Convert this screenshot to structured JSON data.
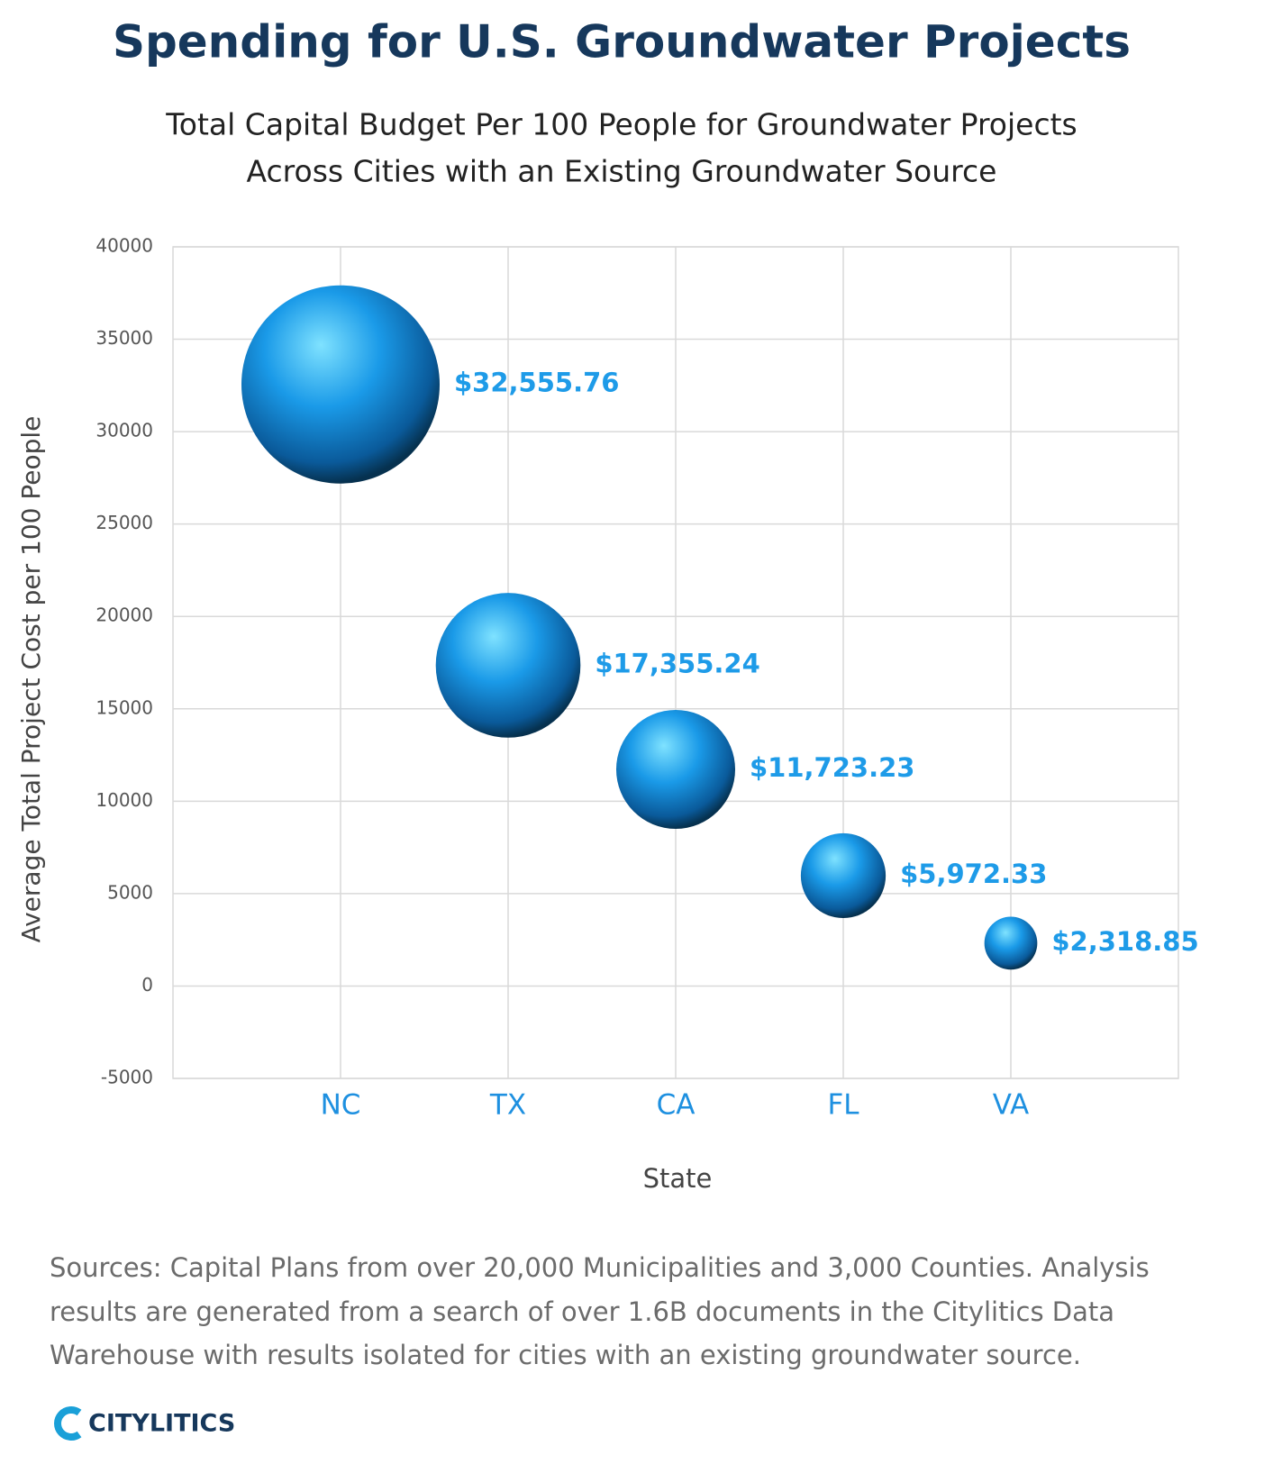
{
  "chart_data": {
    "type": "bubble",
    "title": "Spending for U.S. Groundwater Projects",
    "subtitle": [
      "Total Capital Budget Per 100 People for Groundwater Projects",
      "Across Cities with an Existing Groundwater Source"
    ],
    "x_label": "State",
    "y_label": "Average Total Project Cost per 100 People",
    "categories": [
      "NC",
      "TX",
      "CA",
      "FL",
      "VA"
    ],
    "values": [
      32555.76,
      17355.24,
      11723.23,
      5972.33,
      2318.85
    ],
    "value_labels": [
      "$32,555.76",
      "$17,355.24",
      "$11,723.23",
      "$5,972.33",
      "$2,318.85"
    ],
    "color": "#1a9ae8",
    "ylim": [
      -5000,
      40000
    ],
    "yticks": [
      -5000,
      0,
      5000,
      10000,
      15000,
      20000,
      25000,
      30000,
      35000,
      40000
    ],
    "grid": true
  },
  "footer": {
    "sources": [
      "Sources: Capital Plans from over 20,000 Municipalities and 3,000 Counties. Analysis",
      "results are generated from a search of over 1.6B documents in the Citylitics Data",
      "Warehouse with results isolated for cities with an existing groundwater source."
    ],
    "logo": "CITYLITICS"
  }
}
